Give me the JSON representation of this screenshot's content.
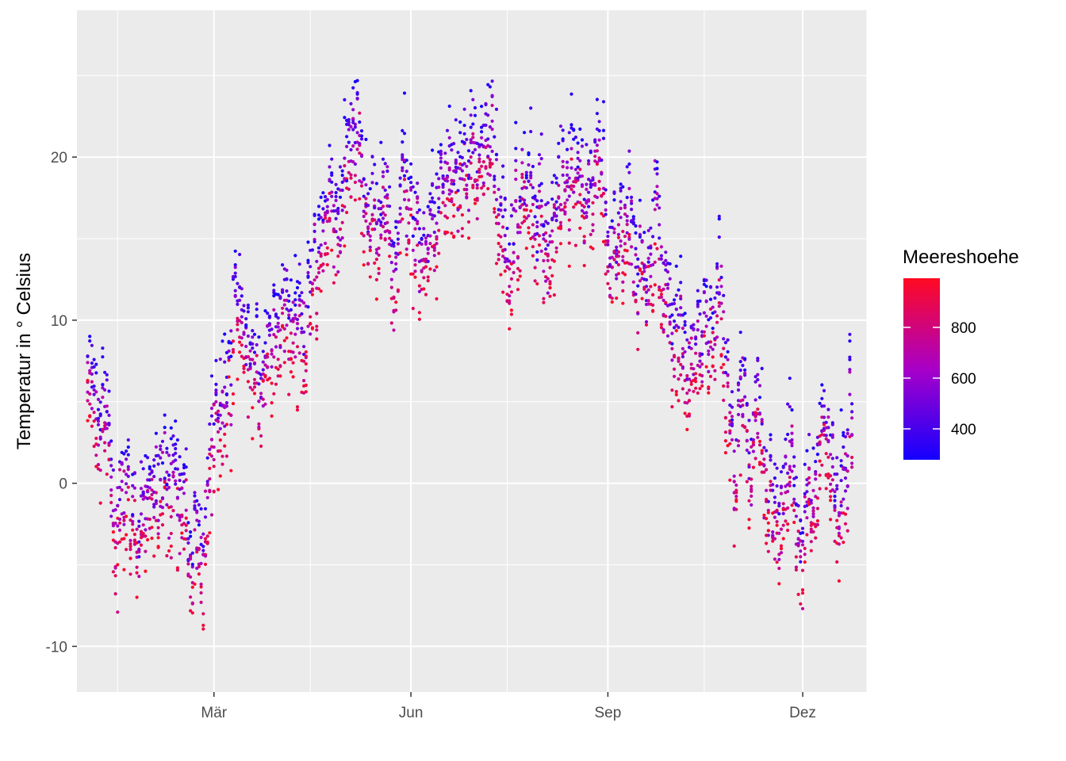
{
  "chart_data": {
    "type": "scatter",
    "title": "",
    "xlabel": "",
    "ylabel": "Temperatur in ° Celsius",
    "x_range": [
      "2016-12-27",
      "2017-12-31"
    ],
    "y_range": [
      -12.8,
      29.0
    ],
    "x_ticks": [
      {
        "date": "2017-03-01",
        "label": "Mär"
      },
      {
        "date": "2017-06-01",
        "label": "Jun"
      },
      {
        "date": "2017-09-01",
        "label": "Sep"
      },
      {
        "date": "2017-12-01",
        "label": "Dez"
      }
    ],
    "x_minor_ticks": [
      "2017-01-15",
      "2017-04-15",
      "2017-07-16",
      "2017-10-16"
    ],
    "y_ticks": [
      -10,
      0,
      10,
      20
    ],
    "grid": true,
    "point_count_note": "",
    "color_scale": {
      "variable": "Meereshoehe",
      "low_color": "#0000ff",
      "high_color": "#ff0000",
      "range": [
        250,
        1000
      ],
      "ticks": [
        400,
        600,
        800
      ]
    },
    "legend_position": "right",
    "temperature_profile": [
      [
        "2017-01-01",
        3.5
      ],
      [
        "2017-01-08",
        4.5
      ],
      [
        "2017-01-15",
        1.0
      ],
      [
        "2017-01-22",
        0.0
      ],
      [
        "2017-01-29",
        -1.0
      ],
      [
        "2017-02-05",
        0.5
      ],
      [
        "2017-02-12",
        -1.5
      ],
      [
        "2017-02-19",
        -2.5
      ],
      [
        "2017-02-26",
        -2.0
      ],
      [
        "2017-03-05",
        5.0
      ],
      [
        "2017-03-12",
        10.0
      ],
      [
        "2017-03-19",
        10.5
      ],
      [
        "2017-03-26",
        8.5
      ],
      [
        "2017-04-02",
        9.0
      ],
      [
        "2017-04-09",
        11.5
      ],
      [
        "2017-04-16",
        10.0
      ],
      [
        "2017-04-23",
        12.0
      ],
      [
        "2017-04-30",
        14.0
      ],
      [
        "2017-05-07",
        17.5
      ],
      [
        "2017-05-14",
        16.0
      ],
      [
        "2017-05-21",
        17.0
      ],
      [
        "2017-05-28",
        20.0
      ],
      [
        "2017-06-04",
        17.0
      ],
      [
        "2017-06-11",
        16.0
      ],
      [
        "2017-06-18",
        21.0
      ],
      [
        "2017-06-25",
        22.0
      ],
      [
        "2017-07-02",
        19.5
      ],
      [
        "2017-07-09",
        20.5
      ],
      [
        "2017-07-16",
        19.0
      ],
      [
        "2017-07-23",
        20.0
      ],
      [
        "2017-07-30",
        17.0
      ],
      [
        "2017-08-06",
        17.5
      ],
      [
        "2017-08-13",
        16.5
      ],
      [
        "2017-08-20",
        17.0
      ],
      [
        "2017-08-27",
        19.5
      ],
      [
        "2017-09-03",
        18.5
      ],
      [
        "2017-09-10",
        15.5
      ],
      [
        "2017-09-17",
        14.0
      ],
      [
        "2017-09-24",
        13.0
      ],
      [
        "2017-10-01",
        11.0
      ],
      [
        "2017-10-08",
        11.0
      ],
      [
        "2017-10-15",
        11.0
      ],
      [
        "2017-10-22",
        11.5
      ],
      [
        "2017-10-29",
        7.0
      ],
      [
        "2017-11-05",
        5.5
      ],
      [
        "2017-11-12",
        1.5
      ],
      [
        "2017-11-19",
        -1.0
      ],
      [
        "2017-11-26",
        1.0
      ],
      [
        "2017-12-03",
        0.5
      ],
      [
        "2017-12-10",
        0.0
      ],
      [
        "2017-12-17",
        -1.0
      ],
      [
        "2017-12-24",
        -1.5
      ]
    ]
  },
  "legend": {
    "title": "Meereshoehe",
    "labels": [
      "800",
      "600",
      "400"
    ]
  },
  "axes": {
    "x_labels": [
      "Mär",
      "Jun",
      "Sep",
      "Dez"
    ],
    "y_labels": [
      "-10",
      "0",
      "10",
      "20"
    ],
    "y_title": "Temperatur in ° Celsius"
  }
}
